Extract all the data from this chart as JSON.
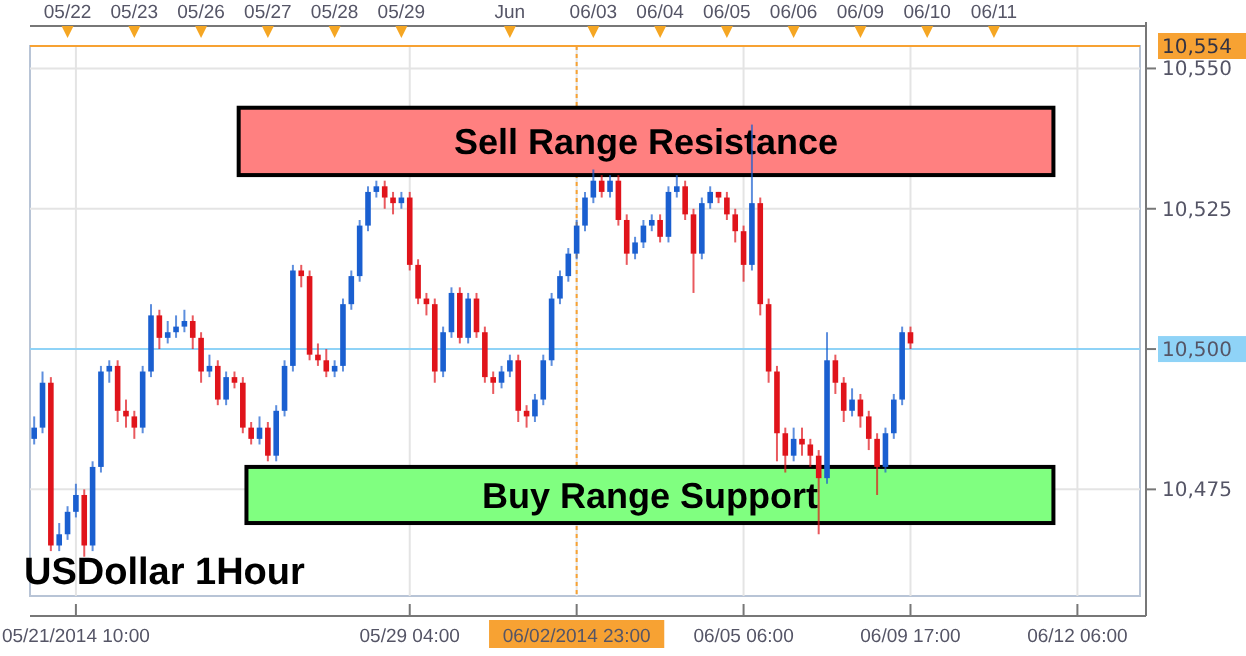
{
  "chart_data": {
    "type": "candlestick",
    "title": "USDollar 1Hour",
    "grid": true,
    "categories": [
      null,
      null,
      null,
      null,
      null,
      "05/21/2014 10:00",
      null,
      null,
      null,
      null,
      null,
      null,
      null,
      null,
      null,
      null,
      null,
      null,
      null,
      null,
      null,
      null,
      null,
      null,
      null,
      null,
      null,
      null,
      null,
      null,
      null,
      null,
      null,
      null,
      null,
      null,
      null,
      null,
      null,
      null,
      null,
      null,
      null,
      null,
      null,
      "05/29 04:00",
      null,
      null,
      null,
      null,
      null,
      null,
      null,
      null,
      null,
      null,
      null,
      null,
      null,
      null,
      null,
      null,
      null,
      null,
      null,
      "06/02/2014 23:00",
      null,
      null,
      null,
      null,
      null,
      null,
      null,
      null,
      null,
      null,
      null,
      null,
      null,
      null,
      null,
      null,
      null,
      null,
      null,
      "06/05 06:00",
      null,
      null,
      null,
      null,
      null,
      null,
      null,
      null,
      null,
      null,
      null,
      null,
      null,
      null,
      null,
      null,
      null,
      null,
      null,
      "06/09 17:00",
      null,
      null,
      null,
      null,
      null,
      null,
      null,
      null,
      null,
      null,
      null,
      null,
      null,
      null,
      null,
      null,
      null,
      null,
      null,
      "06/12 06:00",
      null,
      null,
      null,
      null,
      null,
      null,
      null
    ],
    "annotations": [
      "05/22",
      "05/23",
      "05/26",
      "05/27",
      "05/28",
      "05/29",
      "Jun",
      "06/03",
      "06/04",
      "06/05",
      "06/06",
      "06/09",
      "06/10",
      "06/11"
    ],
    "ylim": [
      10456,
      10554
    ],
    "yticks": [
      {
        "value": 10475,
        "label": "10,475"
      },
      {
        "value": 10500,
        "label": "10,500"
      },
      {
        "value": 10525,
        "label": "10,525"
      },
      {
        "value": 10550,
        "label": "10,550"
      }
    ],
    "ref_lines": [
      {
        "axis": "y",
        "value": 10554,
        "label": "10,554",
        "color": "#f7a233"
      },
      {
        "axis": "y",
        "value": 10500,
        "color": "#8fd3f7"
      },
      {
        "axis": "x",
        "value": "06/02/2014 23:00",
        "color": "#f7a233",
        "line_style": "dotted"
      }
    ],
    "bands": [
      {
        "axis": "y",
        "from": 10531,
        "to": 10543,
        "label": "Sell Range Resistance",
        "color": "#ff8080"
      },
      {
        "axis": "y",
        "from": 10469,
        "to": 10479,
        "label": "Buy Range Support",
        "color": "#80ff80"
      }
    ],
    "colors": [
      "#1a5fd0",
      "#1a5fd0",
      "#e0141b",
      "#1a5fd0",
      "#1a5fd0",
      "#1a5fd0",
      "#e0141b",
      "#1a5fd0",
      "#1a5fd0",
      "#1a5fd0",
      "#e0141b",
      "#e0141b",
      "#e0141b",
      "#1a5fd0",
      "#1a5fd0",
      "#e0141b",
      "#1a5fd0",
      "#1a5fd0",
      "#1a5fd0",
      "#e0141b",
      "#e0141b",
      "#1a5fd0",
      "#e0141b",
      "#1a5fd0",
      "#e0141b",
      "#e0141b",
      "#e0141b",
      "#1a5fd0",
      "#e0141b",
      "#1a5fd0",
      "#1a5fd0",
      "#1a5fd0",
      "#e0141b",
      "#e0141b",
      "#e0141b",
      "#e0141b",
      "#1a5fd0",
      "#1a5fd0",
      "#1a5fd0",
      "#1a5fd0",
      "#1a5fd0",
      "#1a5fd0",
      "#e0141b",
      "#e0141b",
      "#1a5fd0",
      "#e0141b",
      "#e0141b",
      "#e0141b",
      "#e0141b",
      "#1a5fd0",
      "#1a5fd0",
      "#e0141b",
      "#1a5fd0",
      "#e0141b",
      "#e0141b",
      "#e0141b",
      "#1a5fd0",
      "#1a5fd0",
      "#e0141b",
      "#e0141b",
      "#1a5fd0",
      "#1a5fd0",
      "#1a5fd0",
      "#1a5fd0",
      "#1a5fd0",
      "#1a5fd0",
      "#1a5fd0",
      "#1a5fd0",
      "#e0141b",
      "#1a5fd0",
      "#e0141b",
      "#e0141b",
      "#1a5fd0",
      "#1a5fd0",
      "#1a5fd0",
      "#e0141b",
      "#1a5fd0",
      "#1a5fd0",
      "#e0141b",
      "#e0141b",
      "#1a5fd0",
      "#1a5fd0",
      "#e0141b",
      "#e0141b",
      "#e0141b",
      "#e0141b",
      "#1a5fd0",
      "#e0141b",
      "#e0141b",
      "#e0141b",
      "#e0141b",
      "#1a5fd0",
      "#e0141b",
      "#e0141b",
      "#e0141b",
      "#1a5fd0",
      "#e0141b",
      "#e0141b",
      "#1a5fd0",
      "#e0141b",
      "#e0141b",
      "#e0141b",
      "#1a5fd0",
      "#1a5fd0",
      "#1a5fd0",
      "#e0141b",
      null,
      null,
      null,
      null,
      null,
      null,
      null,
      null,
      null,
      null,
      null,
      null,
      null,
      null,
      null,
      null,
      null,
      null,
      null,
      null,
      null,
      null,
      null,
      null,
      null,
      null,
      null
    ],
    "ohlc": [
      [
        10484,
        10488,
        10483,
        10486
      ],
      [
        10486,
        10496,
        10485,
        10494
      ],
      [
        10494,
        10495,
        10464,
        10465
      ],
      [
        10465,
        10469,
        10464,
        10467
      ],
      [
        10467,
        10472,
        10466,
        10471
      ],
      [
        10471,
        10476,
        10470,
        10474
      ],
      [
        10474,
        10475,
        10463,
        10465
      ],
      [
        10465,
        10480,
        10464,
        10479
      ],
      [
        10479,
        10497,
        10478,
        10496
      ],
      [
        10496,
        10498,
        10494,
        10497
      ],
      [
        10497,
        10498,
        10487,
        10489
      ],
      [
        10489,
        10491,
        10486,
        10488
      ],
      [
        10488,
        10489,
        10484,
        10486
      ],
      [
        10486,
        10497,
        10485,
        10496
      ],
      [
        10496,
        10508,
        10495,
        10506
      ],
      [
        10506,
        10507,
        10500,
        10502
      ],
      [
        10502,
        10505,
        10501,
        10503
      ],
      [
        10503,
        10506,
        10502,
        10504
      ],
      [
        10504,
        10507,
        10503,
        10505
      ],
      [
        10505,
        10506,
        10500,
        10502
      ],
      [
        10502,
        10503,
        10494,
        10496
      ],
      [
        10496,
        10499,
        10495,
        10497
      ],
      [
        10497,
        10498,
        10490,
        10491
      ],
      [
        10491,
        10496,
        10490,
        10495
      ],
      [
        10495,
        10496,
        10493,
        10494
      ],
      [
        10494,
        10495,
        10485,
        10486
      ],
      [
        10486,
        10487,
        10483,
        10484
      ],
      [
        10484,
        10488,
        10483,
        10486
      ],
      [
        10486,
        10487,
        10480,
        10481
      ],
      [
        10481,
        10490,
        10480,
        10489
      ],
      [
        10489,
        10498,
        10488,
        10497
      ],
      [
        10497,
        10515,
        10496,
        10514
      ],
      [
        10514,
        10515,
        10511,
        10513
      ],
      [
        10513,
        10514,
        10498,
        10499
      ],
      [
        10499,
        10501,
        10497,
        10498
      ],
      [
        10498,
        10500,
        10495,
        10496
      ],
      [
        10496,
        10498,
        10495,
        10497
      ],
      [
        10497,
        10509,
        10496,
        10508
      ],
      [
        10508,
        10514,
        10507,
        10513
      ],
      [
        10513,
        10523,
        10512,
        10522
      ],
      [
        10522,
        10529,
        10521,
        10528
      ],
      [
        10528,
        10530,
        10527,
        10529
      ],
      [
        10529,
        10530,
        10525,
        10527
      ],
      [
        10527,
        10528,
        10524,
        10526
      ],
      [
        10526,
        10528,
        10525,
        10527
      ],
      [
        10527,
        10528,
        10514,
        10515
      ],
      [
        10515,
        10516,
        10508,
        10509
      ],
      [
        10509,
        10510,
        10506,
        10508
      ],
      [
        10508,
        10509,
        10494,
        10496
      ],
      [
        10496,
        10504,
        10495,
        10503
      ],
      [
        10503,
        10511,
        10502,
        10510
      ],
      [
        10510,
        10511,
        10501,
        10502
      ],
      [
        10502,
        10510,
        10501,
        10509
      ],
      [
        10509,
        10510,
        10502,
        10503
      ],
      [
        10503,
        10504,
        10494,
        10495
      ],
      [
        10495,
        10496,
        10492,
        10494
      ],
      [
        10494,
        10497,
        10493,
        10496
      ],
      [
        10496,
        10499,
        10495,
        10498
      ],
      [
        10498,
        10499,
        10487,
        10489
      ],
      [
        10489,
        10490,
        10486,
        10488
      ],
      [
        10488,
        10492,
        10487,
        10491
      ],
      [
        10491,
        10499,
        10490,
        10498
      ],
      [
        10498,
        10510,
        10497,
        10509
      ],
      [
        10509,
        10514,
        10508,
        10513
      ],
      [
        10513,
        10518,
        10512,
        10517
      ],
      [
        10517,
        10523,
        10516,
        10522
      ],
      [
        10522,
        10528,
        10521,
        10527
      ],
      [
        10527,
        10532,
        10526,
        10530
      ],
      [
        10530,
        10531,
        10527,
        10528
      ],
      [
        10528,
        10531,
        10527,
        10530
      ],
      [
        10530,
        10531,
        10522,
        10523
      ],
      [
        10523,
        10524,
        10515,
        10517
      ],
      [
        10517,
        10520,
        10516,
        10519
      ],
      [
        10519,
        10523,
        10518,
        10522
      ],
      [
        10522,
        10524,
        10521,
        10523
      ],
      [
        10523,
        10524,
        10519,
        10520
      ],
      [
        10520,
        10529,
        10519,
        10528
      ],
      [
        10528,
        10531,
        10527,
        10529
      ],
      [
        10529,
        10530,
        10523,
        10524
      ],
      [
        10524,
        10525,
        10510,
        10517
      ],
      [
        10517,
        10527,
        10516,
        10526
      ],
      [
        10526,
        10529,
        10525,
        10528
      ],
      [
        10528,
        10528,
        10526,
        10527
      ],
      [
        10527,
        10528,
        10523,
        10524
      ],
      [
        10524,
        10525,
        10519,
        10521
      ],
      [
        10521,
        10522,
        10512,
        10515
      ],
      [
        10515,
        10540,
        10514,
        10526
      ],
      [
        10526,
        10527,
        10506,
        10508
      ],
      [
        10508,
        10509,
        10494,
        10496
      ],
      [
        10496,
        10497,
        10480,
        10485
      ],
      [
        10485,
        10486,
        10478,
        10481
      ],
      [
        10481,
        10486,
        10480,
        10484
      ],
      [
        10484,
        10486,
        10481,
        10483
      ],
      [
        10483,
        10484,
        10479,
        10481
      ],
      [
        10481,
        10482,
        10467,
        10477
      ],
      [
        10477,
        10503,
        10476,
        10498
      ],
      [
        10498,
        10499,
        10492,
        10494
      ],
      [
        10494,
        10495,
        10487,
        10489
      ],
      [
        10489,
        10493,
        10488,
        10491
      ],
      [
        10491,
        10492,
        10486,
        10488
      ],
      [
        10488,
        10489,
        10482,
        10484
      ],
      [
        10484,
        10485,
        10474,
        10479
      ],
      [
        10479,
        10486,
        10478,
        10485
      ],
      [
        10485,
        10492,
        10484,
        10491
      ],
      [
        10491,
        10504,
        10490,
        10503
      ],
      [
        10503,
        10504,
        10500,
        10501
      ],
      null,
      null,
      null,
      null,
      null,
      null,
      null,
      null,
      null,
      null,
      null,
      null,
      null,
      null,
      null,
      null,
      null,
      null,
      null,
      null,
      null,
      null,
      null,
      null,
      null,
      null,
      null
    ]
  }
}
